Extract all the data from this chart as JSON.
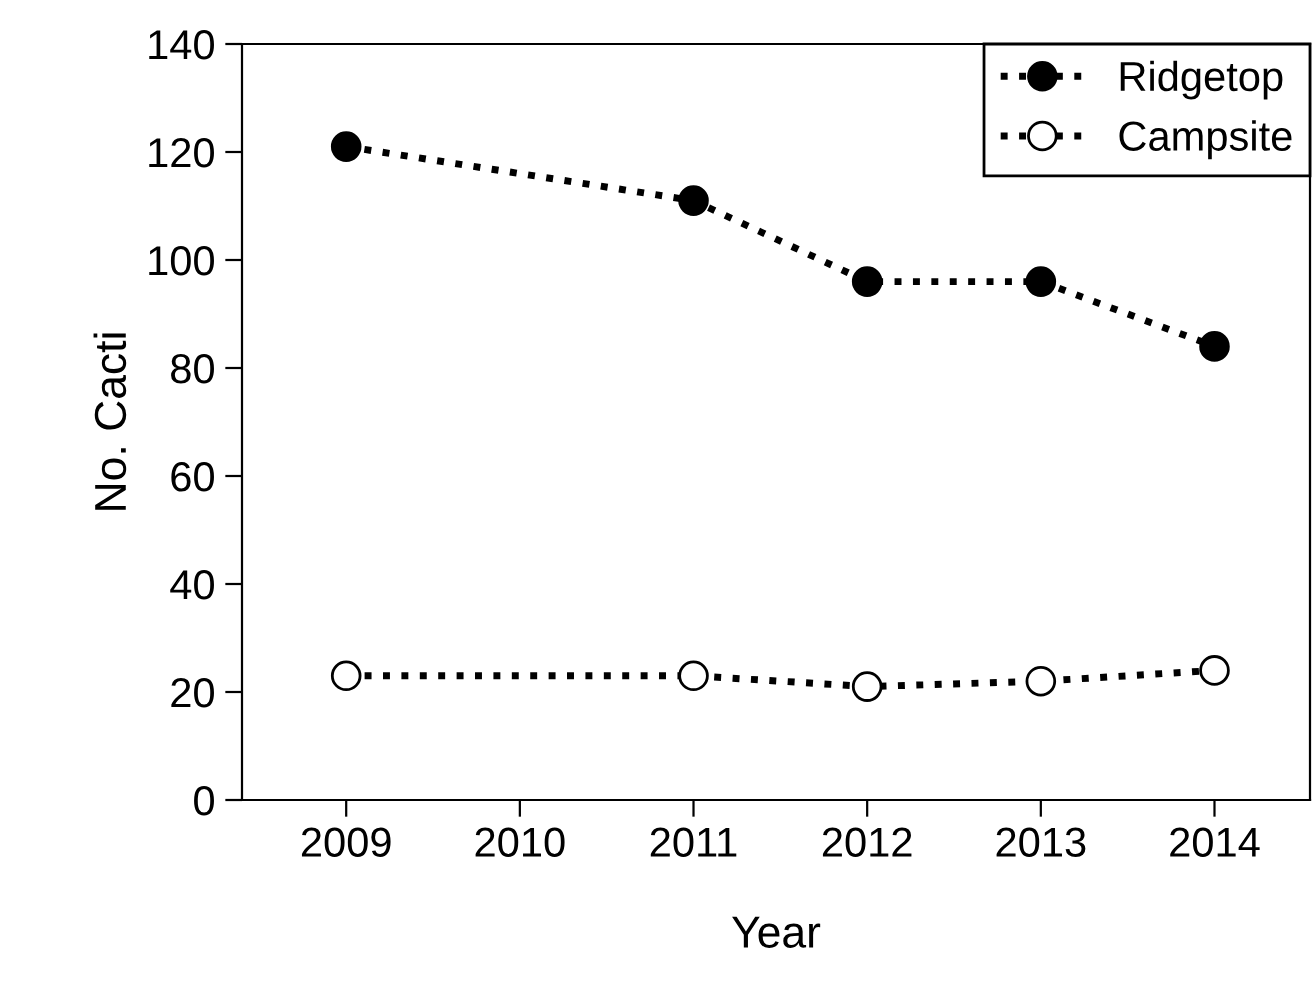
{
  "chart_data": {
    "type": "line",
    "xlabel": "Year",
    "ylabel": "No. Cacti",
    "x": [
      2009,
      2011,
      2012,
      2013,
      2014
    ],
    "series": [
      {
        "name": "Ridgetop",
        "color": "#000000",
        "values": [
          121,
          111,
          96,
          96,
          84
        ]
      },
      {
        "name": "Campsite",
        "color": "#ffffff",
        "values": [
          23,
          23,
          21,
          22,
          24
        ]
      }
    ],
    "xlim": [
      2008.4,
      2014.55
    ],
    "xticks": [
      2009,
      2010,
      2011,
      2012,
      2013,
      2014
    ],
    "ylim": [
      0,
      140
    ],
    "yticks": [
      0,
      20,
      40,
      60,
      80,
      100,
      120,
      140
    ],
    "marker": "circle",
    "line_style": "dotted",
    "grid": false,
    "legend": "top right"
  }
}
